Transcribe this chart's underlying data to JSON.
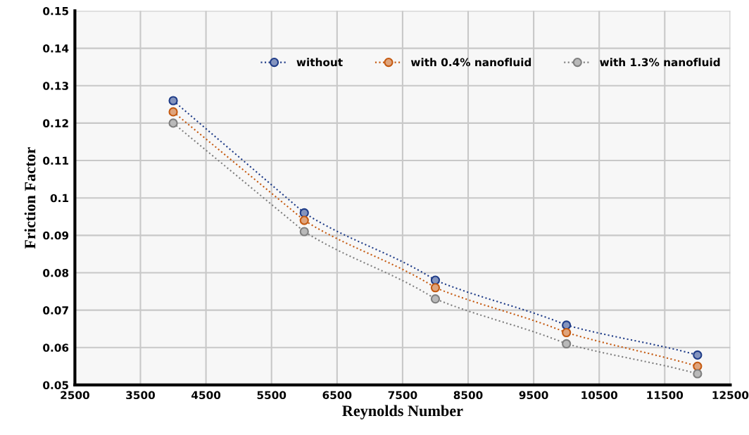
{
  "chart_data": {
    "type": "line",
    "xlabel": "Reynolds Number",
    "ylabel": "Friction Factor",
    "x": [
      4000,
      6000,
      8000,
      10000,
      12000
    ],
    "series": [
      {
        "name": "without",
        "color": "#1f3c88",
        "values": [
          0.126,
          0.096,
          0.078,
          0.066,
          0.058
        ]
      },
      {
        "name": "with 0.4% nanofluid",
        "color": "#c55a11",
        "values": [
          0.123,
          0.094,
          0.076,
          0.064,
          0.055
        ]
      },
      {
        "name": "with 1.3% nanofluid",
        "color": "#7f7f7f",
        "values": [
          0.12,
          0.091,
          0.073,
          0.061,
          0.053
        ]
      }
    ],
    "xlim": [
      2500,
      12500
    ],
    "xticks": [
      2500,
      3500,
      4500,
      5500,
      6500,
      7500,
      8500,
      9500,
      10500,
      11500,
      12500
    ],
    "ylim": [
      0.05,
      0.15
    ],
    "yticks": [
      0.05,
      0.06,
      0.07,
      0.08,
      0.09,
      0.1,
      0.11,
      0.12,
      0.13,
      0.14,
      0.15
    ],
    "grid": true,
    "legend": "top right",
    "marker": "circle",
    "line_style": "dotted"
  }
}
